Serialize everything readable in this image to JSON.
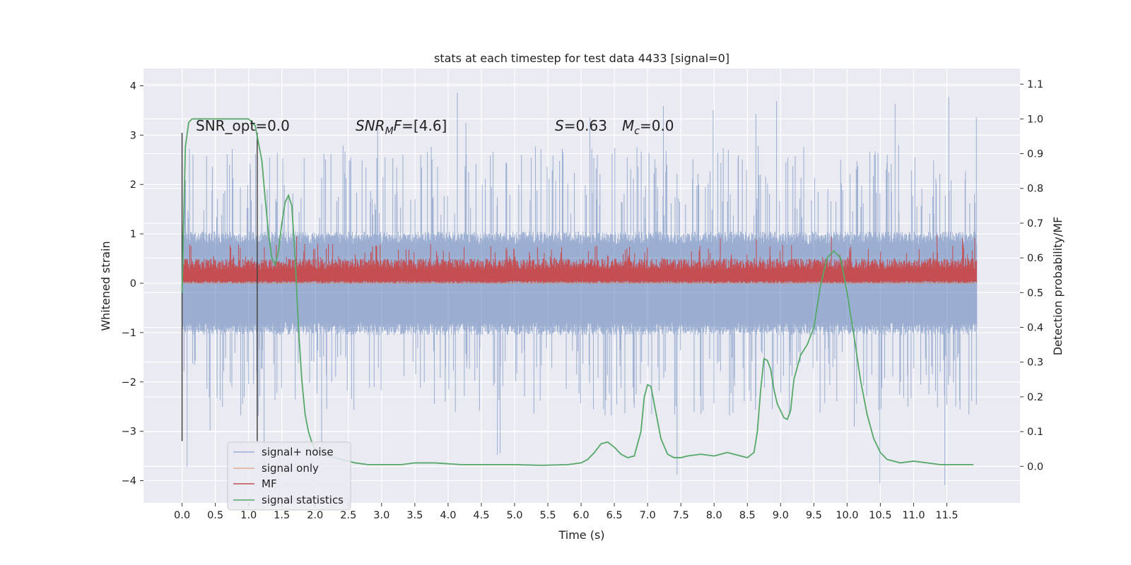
{
  "chart_data": {
    "type": "line",
    "title": "stats at each timestep for test data 4433 [signal=0]",
    "xlabel": "Time (s)",
    "ylabel": "Whitened strain",
    "y2label": "Detection probability/MF",
    "xlim": [
      -0.58,
      12.6
    ],
    "ylim": [
      -4.45,
      4.35
    ],
    "y2lim": [
      -0.105,
      1.145
    ],
    "grid": true,
    "legend_position": "lower-left",
    "x_ticks": [
      0.0,
      0.5,
      1.0,
      1.5,
      2.0,
      2.5,
      3.0,
      3.5,
      4.0,
      4.5,
      5.0,
      5.5,
      6.0,
      6.5,
      7.0,
      7.5,
      8.0,
      8.5,
      9.0,
      9.5,
      10.0,
      10.5,
      11.0,
      11.5
    ],
    "x_tick_labels": [
      "0.0",
      "0.5",
      "1.0",
      "1.5",
      "2.0",
      "2.5",
      "3.0",
      "3.5",
      "4.0",
      "4.5",
      "5.0",
      "5.5",
      "6.0",
      "6.5",
      "7.0",
      "7.5",
      "8.0",
      "8.5",
      "9.0",
      "9.5",
      "10.0",
      "10.5",
      "11.0",
      "11.5"
    ],
    "y_ticks": [
      -4,
      -3,
      -2,
      -1,
      0,
      1,
      2,
      3,
      4
    ],
    "y_tick_labels": [
      "−4",
      "−3",
      "−2",
      "−1",
      "0",
      "1",
      "2",
      "3",
      "4"
    ],
    "y2_ticks": [
      0.0,
      0.1,
      0.2,
      0.3,
      0.4,
      0.5,
      0.6,
      0.7,
      0.8,
      0.9,
      1.0,
      1.1
    ],
    "y2_tick_labels": [
      "0.0",
      "0.1",
      "0.2",
      "0.3",
      "0.4",
      "0.5",
      "0.6",
      "0.7",
      "0.8",
      "0.9",
      "1.0",
      "1.1"
    ],
    "annotations": {
      "snr_opt": "SNR_opt=0.0",
      "snr_mf_prefix": "SNR",
      "snr_mf_sub": "M",
      "snr_mf_suffix": "F=[4.6]",
      "s_name": "S",
      "s_value": "=0.63",
      "mc_name": "M",
      "mc_sub": "c",
      "mc_value": "=0.0"
    },
    "vlines": [
      {
        "x": 0.0,
        "ymin": -3.2,
        "ymax": 3.05
      },
      {
        "x": 1.13,
        "ymin": -3.2,
        "ymax": 3.05
      }
    ],
    "series": [
      {
        "name": "signal+ noise",
        "color": "#4c72b0",
        "kind": "noise",
        "x_range": [
          0.0,
          11.95
        ],
        "core_amplitude": 1.05,
        "spike_max": 3.9,
        "spike_min": -4.1
      },
      {
        "name": "signal only",
        "color": "#dd8452",
        "kind": "flat",
        "x": [
          0.0,
          11.95
        ],
        "y": [
          0.0,
          0.0
        ]
      },
      {
        "name": "MF",
        "color": "#c44e52",
        "kind": "band",
        "x_range": [
          0.0,
          11.95
        ],
        "y_low": 0.0,
        "y_high": 0.5,
        "y_max": 1.0
      },
      {
        "name": "signal statistics",
        "color": "#55a868",
        "kind": "line",
        "axis": "right",
        "x": [
          0.0,
          0.05,
          0.1,
          0.15,
          0.2,
          0.3,
          0.5,
          0.7,
          0.9,
          1.0,
          1.1,
          1.2,
          1.25,
          1.3,
          1.35,
          1.4,
          1.45,
          1.5,
          1.55,
          1.6,
          1.65,
          1.7,
          1.75,
          1.8,
          1.85,
          1.9,
          1.95,
          2.0,
          2.1,
          2.2,
          2.4,
          2.6,
          2.8,
          3.0,
          3.3,
          3.5,
          3.8,
          4.2,
          4.6,
          5.0,
          5.4,
          5.8,
          6.0,
          6.1,
          6.2,
          6.3,
          6.4,
          6.5,
          6.6,
          6.7,
          6.8,
          6.9,
          6.95,
          7.0,
          7.05,
          7.1,
          7.2,
          7.3,
          7.4,
          7.5,
          7.6,
          7.8,
          8.0,
          8.2,
          8.4,
          8.5,
          8.6,
          8.65,
          8.7,
          8.75,
          8.8,
          8.85,
          8.9,
          8.95,
          9.0,
          9.05,
          9.1,
          9.15,
          9.2,
          9.3,
          9.4,
          9.5,
          9.6,
          9.7,
          9.8,
          9.9,
          10.0,
          10.1,
          10.2,
          10.3,
          10.4,
          10.5,
          10.6,
          10.8,
          11.0,
          11.2,
          11.4,
          11.6,
          11.8,
          11.9
        ],
        "y": [
          0.5,
          0.92,
          0.99,
          1.0,
          1.0,
          1.0,
          1.0,
          1.0,
          1.0,
          1.0,
          0.98,
          0.88,
          0.77,
          0.67,
          0.6,
          0.58,
          0.62,
          0.7,
          0.76,
          0.78,
          0.75,
          0.6,
          0.4,
          0.25,
          0.15,
          0.1,
          0.07,
          0.05,
          0.04,
          0.03,
          0.02,
          0.01,
          0.005,
          0.005,
          0.005,
          0.01,
          0.01,
          0.005,
          0.005,
          0.005,
          0.003,
          0.005,
          0.01,
          0.02,
          0.04,
          0.065,
          0.07,
          0.055,
          0.035,
          0.025,
          0.03,
          0.1,
          0.2,
          0.235,
          0.23,
          0.18,
          0.08,
          0.035,
          0.025,
          0.025,
          0.03,
          0.035,
          0.03,
          0.04,
          0.03,
          0.025,
          0.04,
          0.1,
          0.22,
          0.31,
          0.305,
          0.28,
          0.22,
          0.18,
          0.16,
          0.14,
          0.135,
          0.16,
          0.25,
          0.32,
          0.35,
          0.4,
          0.52,
          0.6,
          0.62,
          0.6,
          0.5,
          0.38,
          0.25,
          0.15,
          0.08,
          0.04,
          0.02,
          0.01,
          0.015,
          0.01,
          0.005,
          0.005,
          0.005,
          0.005
        ]
      }
    ]
  }
}
